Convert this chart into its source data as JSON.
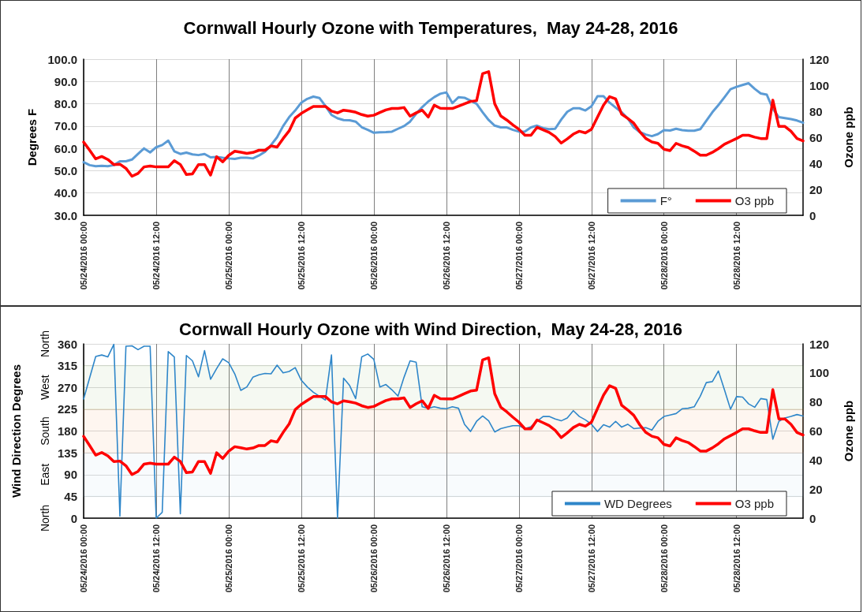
{
  "chart_data": [
    {
      "type": "line",
      "title": "Cornwall Hourly Ozone with Temperatures,  May 24-28, 2016",
      "ylabel": "Degrees F",
      "y2label": "Ozone ppb",
      "x": [
        "2016-05-24T00:00",
        "2016-05-24T01:00",
        "2016-05-24T02:00",
        "2016-05-24T03:00",
        "2016-05-24T04:00",
        "2016-05-24T05:00",
        "2016-05-24T06:00",
        "2016-05-24T07:00",
        "2016-05-24T08:00",
        "2016-05-24T09:00",
        "2016-05-24T10:00",
        "2016-05-24T11:00",
        "2016-05-24T12:00",
        "2016-05-24T13:00",
        "2016-05-24T14:00",
        "2016-05-24T15:00",
        "2016-05-24T16:00",
        "2016-05-24T17:00",
        "2016-05-24T18:00",
        "2016-05-24T19:00",
        "2016-05-24T20:00",
        "2016-05-24T21:00",
        "2016-05-24T22:00",
        "2016-05-24T23:00",
        "2016-05-25T00:00",
        "2016-05-25T01:00",
        "2016-05-25T02:00",
        "2016-05-25T03:00",
        "2016-05-25T04:00",
        "2016-05-25T05:00",
        "2016-05-25T06:00",
        "2016-05-25T07:00",
        "2016-05-25T08:00",
        "2016-05-25T09:00",
        "2016-05-25T10:00",
        "2016-05-25T11:00",
        "2016-05-25T12:00",
        "2016-05-25T13:00",
        "2016-05-25T14:00",
        "2016-05-25T15:00",
        "2016-05-25T16:00",
        "2016-05-25T17:00",
        "2016-05-25T18:00",
        "2016-05-25T19:00",
        "2016-05-25T20:00",
        "2016-05-25T21:00",
        "2016-05-25T22:00",
        "2016-05-25T23:00",
        "2016-05-26T00:00",
        "2016-05-26T01:00",
        "2016-05-26T02:00",
        "2016-05-26T03:00",
        "2016-05-26T04:00",
        "2016-05-26T05:00",
        "2016-05-26T06:00",
        "2016-05-26T07:00",
        "2016-05-26T08:00",
        "2016-05-26T09:00",
        "2016-05-26T10:00",
        "2016-05-26T11:00",
        "2016-05-26T12:00",
        "2016-05-26T13:00",
        "2016-05-26T14:00",
        "2016-05-26T15:00",
        "2016-05-26T16:00",
        "2016-05-26T17:00",
        "2016-05-26T18:00",
        "2016-05-26T19:00",
        "2016-05-26T20:00",
        "2016-05-26T21:00",
        "2016-05-26T22:00",
        "2016-05-26T23:00",
        "2016-05-27T00:00",
        "2016-05-27T01:00",
        "2016-05-27T02:00",
        "2016-05-27T03:00",
        "2016-05-27T04:00",
        "2016-05-27T05:00",
        "2016-05-27T06:00",
        "2016-05-27T07:00",
        "2016-05-27T08:00",
        "2016-05-27T09:00",
        "2016-05-27T10:00",
        "2016-05-27T11:00",
        "2016-05-27T12:00",
        "2016-05-27T13:00",
        "2016-05-27T14:00",
        "2016-05-27T15:00",
        "2016-05-27T16:00",
        "2016-05-27T17:00",
        "2016-05-27T18:00",
        "2016-05-27T19:00",
        "2016-05-27T20:00",
        "2016-05-27T21:00",
        "2016-05-27T22:00",
        "2016-05-27T23:00",
        "2016-05-28T00:00",
        "2016-05-28T01:00",
        "2016-05-28T02:00",
        "2016-05-28T03:00",
        "2016-05-28T04:00",
        "2016-05-28T05:00",
        "2016-05-28T06:00",
        "2016-05-28T07:00",
        "2016-05-28T08:00",
        "2016-05-28T09:00",
        "2016-05-28T10:00",
        "2016-05-28T11:00",
        "2016-05-28T12:00",
        "2016-05-28T13:00",
        "2016-05-28T14:00",
        "2016-05-28T15:00",
        "2016-05-28T16:00",
        "2016-05-28T17:00",
        "2016-05-28T18:00",
        "2016-05-28T19:00",
        "2016-05-28T20:00",
        "2016-05-28T21:00",
        "2016-05-28T22:00",
        "2016-05-28T23:00"
      ],
      "series": [
        {
          "name": "F°",
          "color": "#5b9bd5",
          "values": [
            53.8,
            52.5,
            52,
            52.2,
            52,
            52.5,
            54.2,
            54.2,
            55,
            57.5,
            60,
            58.2,
            60.5,
            61.5,
            63.5,
            58.7,
            57.5,
            58.1,
            57.3,
            57,
            57.5,
            56,
            56.2,
            55.8,
            55.5,
            55.3,
            55.8,
            55.8,
            55.5,
            56.8,
            58.5,
            61.5,
            65,
            70,
            74,
            77,
            80.5,
            82.2,
            83.2,
            82.6,
            79,
            75,
            73.5,
            72.7,
            72.6,
            72,
            69.5,
            68.3,
            67,
            67.2,
            67.3,
            67.5,
            68.8,
            70,
            72,
            75.5,
            78.5,
            81,
            83,
            84.5,
            85.1,
            80.3,
            82.9,
            82.7,
            81.4,
            80,
            76.2,
            72.7,
            70.2,
            69.4,
            69.4,
            68.3,
            67.5,
            67.6,
            69.4,
            70.2,
            69.1,
            68.6,
            68.8,
            72.9,
            76.4,
            78,
            78,
            77,
            78.9,
            83.4,
            83.4,
            80.5,
            78.3,
            76.2,
            73.5,
            69.4,
            67.3,
            66.2,
            65.5,
            66.4,
            68.2,
            68,
            68.8,
            68.2,
            67.9,
            67.9,
            68.6,
            72.4,
            76.2,
            79.4,
            82.9,
            86.5,
            87.6,
            88.4,
            89.2,
            86.7,
            84.6,
            84.1,
            77.8,
            74,
            73.6,
            73.1,
            72.5,
            71.5
          ]
        },
        {
          "name": "O3 ppb",
          "color": "#ff0000",
          "axis": "y2",
          "values": [
            56.3,
            50,
            43.4,
            45.2,
            42.9,
            39,
            39.3,
            36.1,
            30,
            32.2,
            37.2,
            37.9,
            37.2,
            37.2,
            37.2,
            42,
            39,
            31.3,
            31.8,
            39,
            39,
            30.9,
            45,
            41.1,
            46.1,
            49.2,
            48.5,
            47.6,
            48.3,
            50,
            50,
            53.3,
            52.4,
            59,
            64.9,
            74.7,
            78.3,
            81,
            83.7,
            83.7,
            83.7,
            80.1,
            78.7,
            80.8,
            80.1,
            79.2,
            77.4,
            76.2,
            76.9,
            79,
            81,
            82.1,
            82.1,
            82.8,
            76.2,
            78.7,
            80.8,
            75.5,
            84.6,
            82.3,
            82.1,
            82.1,
            83.8,
            85.7,
            87.5,
            88.1,
            108.9,
            110.4,
            85.7,
            76.4,
            73.2,
            69.5,
            66.1,
            61.5,
            61.5,
            67.6,
            65.7,
            63.7,
            60.5,
            55.5,
            58.7,
            62.4,
            64.6,
            63.3,
            66.1,
            75.4,
            84.7,
            91.2,
            89.4,
            77.7,
            74.5,
            70.8,
            64.2,
            59,
            56.4,
            55.3,
            50.8,
            49.7,
            55.3,
            53.4,
            52.1,
            49.3,
            46.2,
            46.2,
            48.4,
            51.2,
            54.6,
            56.8,
            59,
            61.5,
            61.5,
            60.1,
            59,
            59,
            88.5,
            68.3,
            68.3,
            64.6,
            59,
            57.2
          ]
        }
      ],
      "xlim": [
        "2016-05-24T00:00",
        "2016-05-28T23:00"
      ],
      "xticks": [
        {
          "value": "2016-05-24T00:00",
          "label": "05/24/2016 00:00"
        },
        {
          "value": "2016-05-24T12:00",
          "label": "05/24/2016 12:00"
        },
        {
          "value": "2016-05-25T00:00",
          "label": "05/25/2016 00:00"
        },
        {
          "value": "2016-05-25T12:00",
          "label": "05/25/2016 12:00"
        },
        {
          "value": "2016-05-26T00:00",
          "label": "05/26/2016 00:00"
        },
        {
          "value": "2016-05-26T12:00",
          "label": "05/26/2016 12:00"
        },
        {
          "value": "2016-05-27T00:00",
          "label": "05/27/2016 00:00"
        },
        {
          "value": "2016-05-27T12:00",
          "label": "05/27/2016 12:00"
        },
        {
          "value": "2016-05-28T00:00",
          "label": "05/28/2016 00:00"
        },
        {
          "value": "2016-05-28T12:00",
          "label": "05/28/2016 12:00"
        }
      ],
      "ylim": [
        30,
        100
      ],
      "yticks": [
        {
          "value": 30,
          "label": "30.0"
        },
        {
          "value": 40,
          "label": "40.0"
        },
        {
          "value": 50,
          "label": "50.0"
        },
        {
          "value": 60,
          "label": "60.0"
        },
        {
          "value": 70,
          "label": "70.0"
        },
        {
          "value": 80,
          "label": "80.0"
        },
        {
          "value": 90,
          "label": "90.0"
        },
        {
          "value": 100,
          "label": "100.0"
        }
      ],
      "y2lim": [
        0,
        120
      ],
      "y2ticks": [
        0,
        20,
        40,
        60,
        80,
        100,
        120
      ],
      "grid": true,
      "legend": "bottom right",
      "marker": "none",
      "line_style": "solid"
    },
    {
      "type": "line",
      "title": "Cornwall Hourly Ozone with Wind Direction,  May 24-28, 2016",
      "ylabel": "Wind Direction Degrees",
      "y2label": "Ozone ppb",
      "x": [
        "2016-05-24T00:00",
        "2016-05-24T01:00",
        "2016-05-24T02:00",
        "2016-05-24T03:00",
        "2016-05-24T04:00",
        "2016-05-24T05:00",
        "2016-05-24T06:00",
        "2016-05-24T07:00",
        "2016-05-24T08:00",
        "2016-05-24T09:00",
        "2016-05-24T10:00",
        "2016-05-24T11:00",
        "2016-05-24T12:00",
        "2016-05-24T13:00",
        "2016-05-24T14:00",
        "2016-05-24T15:00",
        "2016-05-24T16:00",
        "2016-05-24T17:00",
        "2016-05-24T18:00",
        "2016-05-24T19:00",
        "2016-05-24T20:00",
        "2016-05-24T21:00",
        "2016-05-24T22:00",
        "2016-05-24T23:00",
        "2016-05-25T00:00",
        "2016-05-25T01:00",
        "2016-05-25T02:00",
        "2016-05-25T03:00",
        "2016-05-25T04:00",
        "2016-05-25T05:00",
        "2016-05-25T06:00",
        "2016-05-25T07:00",
        "2016-05-25T08:00",
        "2016-05-25T09:00",
        "2016-05-25T10:00",
        "2016-05-25T11:00",
        "2016-05-25T12:00",
        "2016-05-25T13:00",
        "2016-05-25T14:00",
        "2016-05-25T15:00",
        "2016-05-25T16:00",
        "2016-05-25T17:00",
        "2016-05-25T18:00",
        "2016-05-25T19:00",
        "2016-05-25T20:00",
        "2016-05-25T21:00",
        "2016-05-25T22:00",
        "2016-05-25T23:00",
        "2016-05-26T00:00",
        "2016-05-26T01:00",
        "2016-05-26T02:00",
        "2016-05-26T03:00",
        "2016-05-26T04:00",
        "2016-05-26T05:00",
        "2016-05-26T06:00",
        "2016-05-26T07:00",
        "2016-05-26T08:00",
        "2016-05-26T09:00",
        "2016-05-26T10:00",
        "2016-05-26T11:00",
        "2016-05-26T12:00",
        "2016-05-26T13:00",
        "2016-05-26T14:00",
        "2016-05-26T15:00",
        "2016-05-26T16:00",
        "2016-05-26T17:00",
        "2016-05-26T18:00",
        "2016-05-26T19:00",
        "2016-05-26T20:00",
        "2016-05-26T21:00",
        "2016-05-26T22:00",
        "2016-05-26T23:00",
        "2016-05-27T00:00",
        "2016-05-27T01:00",
        "2016-05-27T02:00",
        "2016-05-27T03:00",
        "2016-05-27T04:00",
        "2016-05-27T05:00",
        "2016-05-27T06:00",
        "2016-05-27T07:00",
        "2016-05-27T08:00",
        "2016-05-27T09:00",
        "2016-05-27T10:00",
        "2016-05-27T11:00",
        "2016-05-27T12:00",
        "2016-05-27T13:00",
        "2016-05-27T14:00",
        "2016-05-27T15:00",
        "2016-05-27T16:00",
        "2016-05-27T17:00",
        "2016-05-27T18:00",
        "2016-05-27T19:00",
        "2016-05-27T20:00",
        "2016-05-27T21:00",
        "2016-05-27T22:00",
        "2016-05-27T23:00",
        "2016-05-28T00:00",
        "2016-05-28T01:00",
        "2016-05-28T02:00",
        "2016-05-28T03:00",
        "2016-05-28T04:00",
        "2016-05-28T05:00",
        "2016-05-28T06:00",
        "2016-05-28T07:00",
        "2016-05-28T08:00",
        "2016-05-28T09:00",
        "2016-05-28T10:00",
        "2016-05-28T11:00",
        "2016-05-28T12:00",
        "2016-05-28T13:00",
        "2016-05-28T14:00",
        "2016-05-28T15:00",
        "2016-05-28T16:00",
        "2016-05-28T17:00",
        "2016-05-28T18:00",
        "2016-05-28T19:00",
        "2016-05-28T20:00",
        "2016-05-28T21:00",
        "2016-05-28T22:00",
        "2016-05-28T23:00"
      ],
      "series": [
        {
          "name": "WD Degrees",
          "color": "#2e86c9",
          "values": [
            246,
            290,
            334,
            337,
            333,
            359,
            4,
            355,
            356,
            348,
            355,
            355,
            0,
            12,
            344,
            333,
            9,
            336,
            325,
            292,
            346,
            287,
            309,
            329,
            321,
            298,
            264,
            271,
            291,
            296,
            299,
            298,
            316,
            300,
            303,
            311,
            285,
            271,
            260,
            252,
            244,
            337,
            0,
            289,
            274,
            247,
            333,
            339,
            328,
            271,
            276,
            265,
            252,
            291,
            325,
            322,
            230,
            227,
            230,
            227,
            226,
            230,
            227,
            194,
            179,
            200,
            211,
            201,
            178,
            185,
            188,
            191,
            191,
            185,
            189,
            200,
            210,
            210,
            205,
            201,
            207,
            222,
            210,
            203,
            194,
            179,
            193,
            188,
            200,
            188,
            194,
            185,
            186,
            187,
            182,
            200,
            210,
            213,
            216,
            226,
            227,
            230,
            252,
            280,
            282,
            304,
            265,
            225,
            251,
            250,
            236,
            229,
            247,
            245,
            163,
            200,
            207,
            210,
            214,
            211
          ]
        },
        {
          "name": "O3 ppb",
          "color": "#ff0000",
          "axis": "y2",
          "values": [
            56.3,
            50,
            43.4,
            45.2,
            42.9,
            39,
            39.3,
            36.1,
            30,
            32.2,
            37.2,
            37.9,
            37.2,
            37.2,
            37.2,
            42,
            39,
            31.3,
            31.8,
            39,
            39,
            30.9,
            45,
            41.1,
            46.1,
            49.2,
            48.5,
            47.6,
            48.3,
            50,
            50,
            53.3,
            52.4,
            59,
            64.9,
            74.7,
            78.3,
            81,
            83.7,
            83.7,
            83.7,
            80.1,
            78.7,
            80.8,
            80.1,
            79.2,
            77.4,
            76.2,
            76.9,
            79,
            81,
            82.1,
            82.1,
            82.8,
            76.2,
            78.7,
            80.8,
            75.5,
            84.6,
            82.3,
            82.1,
            82.1,
            83.8,
            85.7,
            87.5,
            88.1,
            108.9,
            110.4,
            85.7,
            76.4,
            73.2,
            69.5,
            66.1,
            61.5,
            61.5,
            67.6,
            65.7,
            63.7,
            60.5,
            55.5,
            58.7,
            62.4,
            64.6,
            63.3,
            66.1,
            75.4,
            84.7,
            91.2,
            89.4,
            77.7,
            74.5,
            70.8,
            64.2,
            59,
            56.4,
            55.3,
            50.8,
            49.7,
            55.3,
            53.4,
            52.1,
            49.3,
            46.2,
            46.2,
            48.4,
            51.2,
            54.6,
            56.8,
            59,
            61.5,
            61.5,
            60.1,
            59,
            59,
            88.5,
            68.3,
            68.3,
            64.6,
            59,
            57.2
          ]
        }
      ],
      "xlim": [
        "2016-05-24T00:00",
        "2016-05-28T23:00"
      ],
      "xticks": [
        {
          "value": "2016-05-24T00:00",
          "label": "05/24/2016 00:00"
        },
        {
          "value": "2016-05-24T12:00",
          "label": "05/24/2016 12:00"
        },
        {
          "value": "2016-05-25T00:00",
          "label": "05/25/2016 00:00"
        },
        {
          "value": "2016-05-25T12:00",
          "label": "05/25/2016 12:00"
        },
        {
          "value": "2016-05-26T00:00",
          "label": "05/26/2016 00:00"
        },
        {
          "value": "2016-05-26T12:00",
          "label": "05/26/2016 12:00"
        },
        {
          "value": "2016-05-27T00:00",
          "label": "05/27/2016 00:00"
        },
        {
          "value": "2016-05-27T12:00",
          "label": "05/27/2016 12:00"
        },
        {
          "value": "2016-05-28T00:00",
          "label": "05/28/2016 00:00"
        },
        {
          "value": "2016-05-28T12:00",
          "label": "05/28/2016 12:00"
        }
      ],
      "ylim": [
        0,
        360
      ],
      "yticks": [
        0,
        45,
        90,
        135,
        180,
        225,
        270,
        315,
        360
      ],
      "y2lim": [
        0,
        120
      ],
      "y2ticks": [
        0,
        20,
        40,
        60,
        80,
        100,
        120
      ],
      "bands": [
        {
          "axis": "y",
          "from": 225,
          "to": 315,
          "color": "#70ad47"
        },
        {
          "axis": "y",
          "from": 135,
          "to": 225,
          "color": "#ed7d31"
        },
        {
          "axis": "y",
          "from": 45,
          "to": 135,
          "color": "#9dc3e6"
        }
      ],
      "annotations": [
        "North",
        "West",
        "South",
        "East",
        "North"
      ],
      "grid": true,
      "legend": "bottom right",
      "marker": "none",
      "line_style": "solid"
    }
  ]
}
